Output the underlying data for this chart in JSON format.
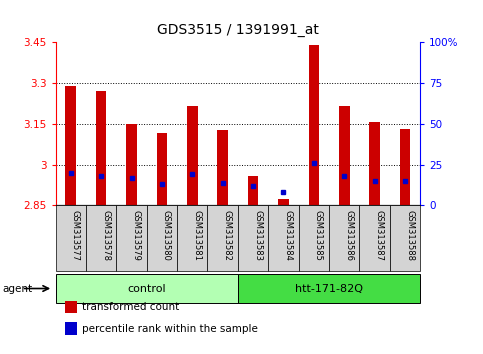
{
  "title": "GDS3515 / 1391991_at",
  "samples": [
    "GSM313577",
    "GSM313578",
    "GSM313579",
    "GSM313580",
    "GSM313581",
    "GSM313582",
    "GSM313583",
    "GSM313584",
    "GSM313585",
    "GSM313586",
    "GSM313587",
    "GSM313588"
  ],
  "transformed_counts": [
    3.29,
    3.272,
    3.15,
    3.115,
    3.215,
    3.128,
    2.958,
    2.875,
    3.44,
    3.215,
    3.158,
    3.132
  ],
  "percentile_ranks": [
    20,
    18,
    17,
    13,
    19,
    14,
    12,
    8,
    26,
    18,
    15,
    15
  ],
  "ymin": 2.85,
  "ymax": 3.45,
  "yticks": [
    2.85,
    3.0,
    3.15,
    3.3,
    3.45
  ],
  "ytick_labels": [
    "2.85",
    "3",
    "3.15",
    "3.3",
    "3.45"
  ],
  "right_yticks": [
    0,
    25,
    50,
    75,
    100
  ],
  "right_ytick_labels": [
    "0",
    "25",
    "50",
    "75",
    "100%"
  ],
  "groups": [
    {
      "name": "control",
      "start": 0,
      "end": 6,
      "color": "#b3ffb3"
    },
    {
      "name": "htt-171-82Q",
      "start": 6,
      "end": 12,
      "color": "#44dd44"
    }
  ],
  "bar_color": "#cc0000",
  "percentile_color": "#0000cc",
  "bar_width": 0.35,
  "legend_items": [
    {
      "label": "transformed count",
      "color": "#cc0000"
    },
    {
      "label": "percentile rank within the sample",
      "color": "#0000cc"
    }
  ]
}
